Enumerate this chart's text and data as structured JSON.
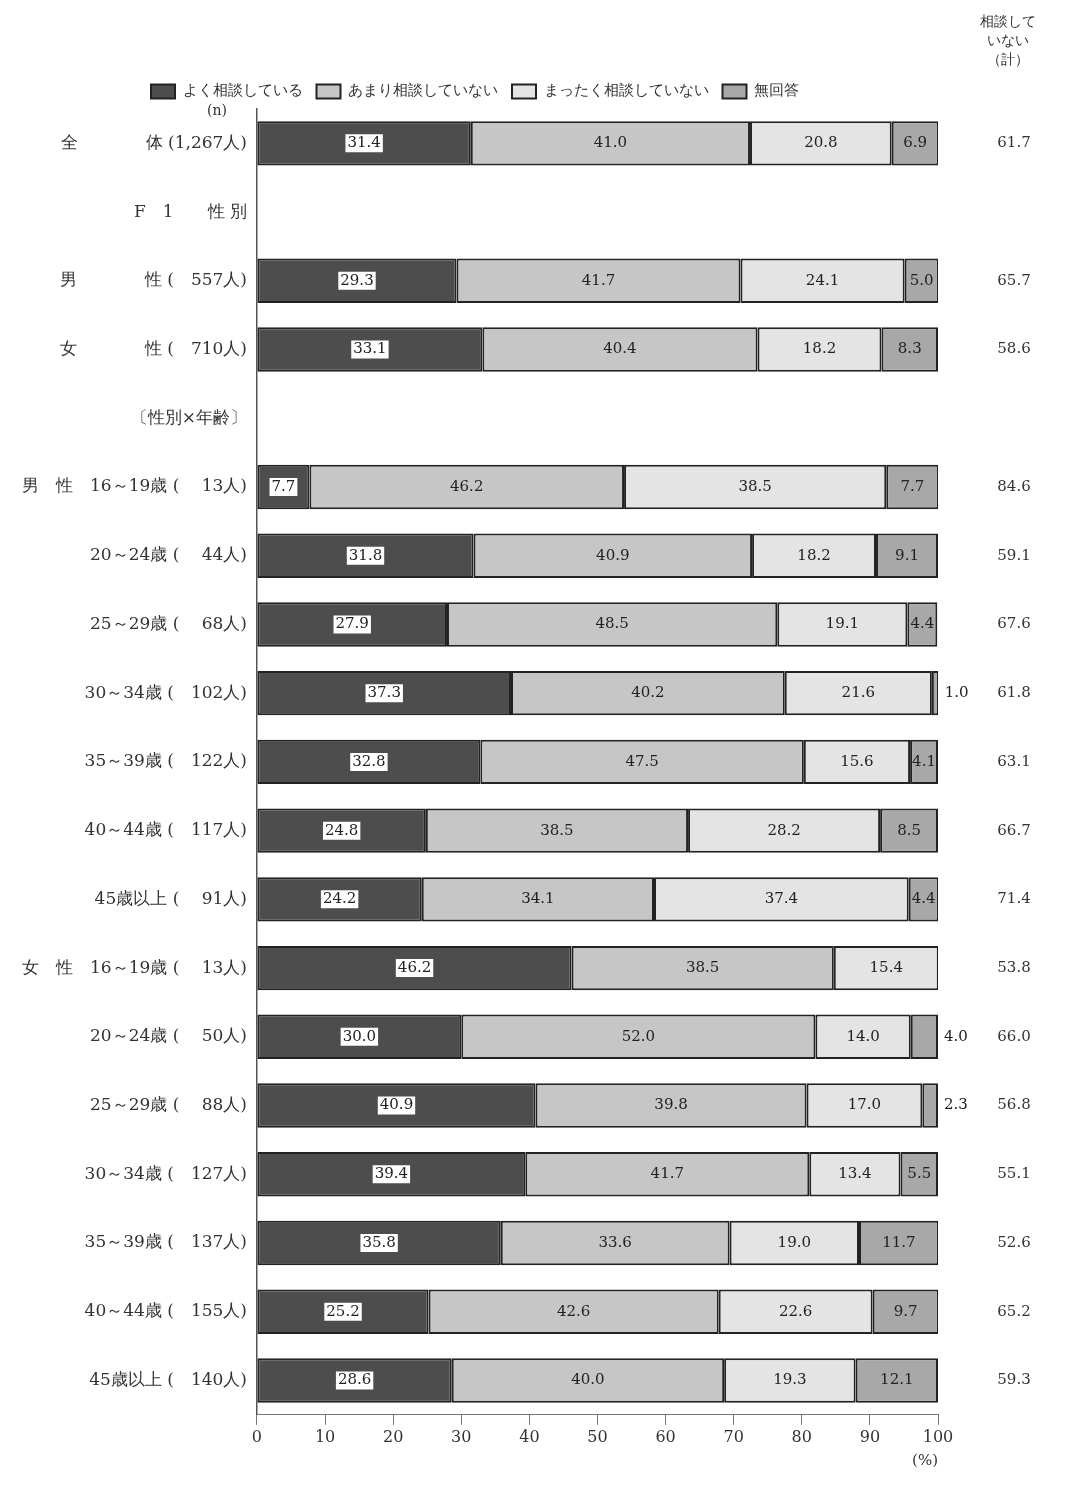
{
  "chart_data": {
    "type": "bar",
    "orientation": "horizontal",
    "stacked": true,
    "legend": "top",
    "grid": false,
    "xlabel": "(%)",
    "annotations": [
      "(n)",
      "相談していない（計）",
      "61.7",
      "65.7",
      "58.6",
      "84.6",
      "59.1",
      "67.6",
      "61.8",
      "63.1",
      "66.7",
      "71.4",
      "53.8",
      "66.0",
      "56.8",
      "55.1",
      "52.6",
      "65.2",
      "59.3"
    ],
    "categories": [
      "全　　　　体 (1,267人)",
      "F　1　　性 別",
      "男　　　　性 (　557人)",
      "女　　　　性 (　710人)",
      "〔性別×年齢〕",
      "男　性　16～19歳 (　 13人)",
      "20～24歳 (　 44人)",
      "25～29歳 (　 68人)",
      "30～34歳 (　102人)",
      "35～39歳 (　122人)",
      "40～44歳 (　117人)",
      "45歳以上 (　 91人)",
      "女　性　16～19歳 (　 13人)",
      "20～24歳 (　 50人)",
      "25～29歳 (　 88人)",
      "30～34歳 (　127人)",
      "35～39歳 (　137人)",
      "40～44歳 (　155人)",
      "45歳以上 (　140人)"
    ],
    "series": [
      {
        "name": "よく相談している",
        "color": "#4d4d4d",
        "values": [
          31.4,
          null,
          29.3,
          33.1,
          null,
          7.7,
          31.8,
          27.9,
          37.3,
          32.8,
          24.8,
          24.2,
          46.2,
          30.0,
          40.9,
          39.4,
          35.8,
          25.2,
          28.6
        ],
        "value_labels": [
          "31.4",
          null,
          "29.3",
          "33.1",
          null,
          "7.7",
          "31.8",
          "27.9",
          "37.3",
          "32.8",
          "24.8",
          "24.2",
          "46.2",
          "30.0",
          "40.9",
          "39.4",
          "35.8",
          "25.2",
          "28.6"
        ]
      },
      {
        "name": "あまり相談していない",
        "color": "#c6c6c6",
        "values": [
          41.0,
          null,
          41.7,
          40.4,
          null,
          46.2,
          40.9,
          48.5,
          40.2,
          47.5,
          38.5,
          34.1,
          38.5,
          52.0,
          39.8,
          41.7,
          33.6,
          42.6,
          40.0
        ],
        "value_labels": [
          "41.0",
          null,
          "41.7",
          "40.4",
          null,
          "46.2",
          "40.9",
          "48.5",
          "40.2",
          "47.5",
          "38.5",
          "34.1",
          "38.5",
          "52.0",
          "39.8",
          "41.7",
          "33.6",
          "42.6",
          "40.0"
        ]
      },
      {
        "name": "まったく相談していない",
        "color": "#e4e4e4",
        "values": [
          20.8,
          null,
          24.1,
          18.2,
          null,
          38.5,
          18.2,
          19.1,
          21.6,
          15.6,
          28.2,
          37.4,
          15.4,
          14.0,
          17.0,
          13.4,
          19.0,
          22.6,
          19.3
        ],
        "value_labels": [
          "20.8",
          null,
          "24.1",
          "18.2",
          null,
          "38.5",
          "18.2",
          "19.1",
          "21.6",
          "15.6",
          "28.2",
          "37.4",
          "15.4",
          "14.0",
          "17.0",
          "13.4",
          "19.0",
          "22.6",
          "19.3"
        ]
      },
      {
        "name": "無回答",
        "color": "#a8a8a8",
        "values": [
          6.9,
          null,
          5.0,
          8.3,
          null,
          7.7,
          9.1,
          4.4,
          1.0,
          4.1,
          8.5,
          4.4,
          null,
          4.0,
          2.3,
          5.5,
          11.7,
          9.7,
          12.1
        ],
        "value_labels": [
          "6.9",
          null,
          "5.0",
          "8.3",
          null,
          "7.7",
          "9.1",
          "4.4",
          "1.0",
          "4.1",
          "8.5",
          "4.4",
          null,
          "4.0",
          "2.3",
          "5.5",
          "11.7",
          "9.7",
          "12.1"
        ]
      }
    ],
    "xlim": [
      0,
      100
    ],
    "xticks": [
      0,
      10,
      20,
      30,
      40,
      50,
      60,
      70,
      80,
      90,
      100
    ]
  }
}
